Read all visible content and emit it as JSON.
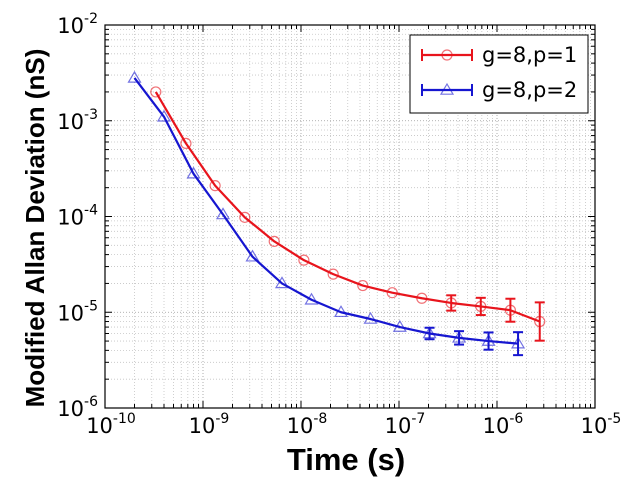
{
  "chart_data": {
    "type": "line",
    "title": "",
    "xlabel": "Time (s)",
    "ylabel": "Modified Allan Deviation (nS)",
    "xscale": "log",
    "yscale": "log",
    "xlim": [
      1e-10,
      1e-05
    ],
    "ylim": [
      1e-06,
      0.01
    ],
    "grid": true,
    "legend_position": "top-right",
    "x_ticks": [
      {
        "base": "10",
        "exp": "-10"
      },
      {
        "base": "10",
        "exp": "-9"
      },
      {
        "base": "10",
        "exp": "-8"
      },
      {
        "base": "10",
        "exp": "-7"
      },
      {
        "base": "10",
        "exp": "-6"
      },
      {
        "base": "10",
        "exp": "-5"
      }
    ],
    "y_ticks": [
      {
        "base": "10",
        "exp": "-6"
      },
      {
        "base": "10",
        "exp": "-5"
      },
      {
        "base": "10",
        "exp": "-4"
      },
      {
        "base": "10",
        "exp": "-3"
      },
      {
        "base": "10",
        "exp": "-2"
      }
    ],
    "series": [
      {
        "name": "g=8,p=1",
        "color": "#e8141c",
        "marker": "circle",
        "x": [
          3.3e-10,
          6.7e-10,
          1.33e-09,
          2.67e-09,
          5.33e-09,
          1.07e-08,
          2.13e-08,
          4.27e-08,
          8.53e-08,
          1.71e-07,
          3.41e-07,
          6.83e-07,
          1.37e-06,
          2.73e-06
        ],
        "y": [
          0.002,
          0.00058,
          0.00021,
          9.8e-05,
          5.5e-05,
          3.5e-05,
          2.5e-05,
          1.9e-05,
          1.6e-05,
          1.4e-05,
          1.25e-05,
          1.15e-05,
          1.05e-05,
          8e-06
        ],
        "err": [
          0,
          0,
          0,
          0,
          0,
          0,
          0,
          0,
          0,
          0,
          0.08,
          0.09,
          0.12,
          0.2
        ]
      },
      {
        "name": "g=8,p=2",
        "color": "#1616d0",
        "marker": "triangle",
        "x": [
          2e-10,
          4e-10,
          8e-10,
          1.6e-09,
          3.2e-09,
          6.4e-09,
          1.28e-08,
          2.56e-08,
          5.12e-08,
          1.02e-07,
          2.05e-07,
          4.1e-07,
          8.2e-07,
          1.64e-06
        ],
        "y": [
          0.0028,
          0.0011,
          0.00028,
          0.000105,
          3.8e-05,
          2e-05,
          1.35e-05,
          1e-05,
          8.5e-06,
          7e-06,
          6e-06,
          5.4e-06,
          5e-06,
          4.7e-06
        ],
        "err": [
          0,
          0,
          0,
          0,
          0,
          0,
          0,
          0,
          0,
          0,
          0.06,
          0.07,
          0.09,
          0.12
        ]
      }
    ]
  }
}
